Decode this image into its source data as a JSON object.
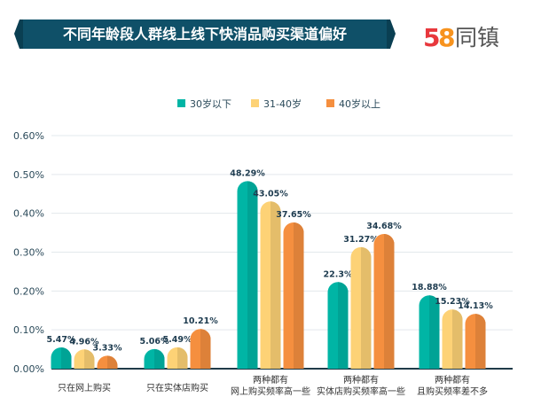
{
  "header": {
    "title": "不同年龄段人群线上线下快消品购买渠道偏好",
    "banner_color": "#0f5068",
    "logo": {
      "digits": "58",
      "text": "同镇"
    }
  },
  "chart_data": {
    "type": "bar",
    "title": "不同年龄段人群线上线下快消品购买渠道偏好",
    "categories": [
      [
        "只在网上购买"
      ],
      [
        "只在实体店购买"
      ],
      [
        "两种都有",
        "网上购买频率高一些"
      ],
      [
        "两种都有",
        "实体店购买频率高一些"
      ],
      [
        "两种都有",
        "且购买频率差不多"
      ]
    ],
    "series": [
      {
        "name": "30岁以下",
        "color": "#00b5a5",
        "values": [
          5.47,
          5.06,
          48.29,
          22.3,
          18.88
        ],
        "labels": [
          "5.47%",
          "5.06%",
          "48.29%",
          "22.3%",
          "18.88%"
        ]
      },
      {
        "name": "31-40岁",
        "color": "#fdd276",
        "values": [
          4.96,
          5.49,
          43.05,
          31.27,
          15.23
        ],
        "labels": [
          "4.96%",
          "5.49%",
          "43.05%",
          "31.27%",
          "15.23%"
        ]
      },
      {
        "name": "40岁以上",
        "color": "#f58f3f",
        "values": [
          3.33,
          10.21,
          37.65,
          34.68,
          14.13
        ],
        "labels": [
          "3.33%",
          "10.21%",
          "37.65%",
          "34.68%",
          "14.13%"
        ]
      }
    ],
    "y_ticks": [
      "0.00%",
      "0.10%",
      "0.20%",
      "0.30%",
      "0.40%",
      "0.50%",
      "0.60%"
    ],
    "ylim": [
      0,
      0.6
    ],
    "grid": true,
    "legend_position": "top-center",
    "xlabel": "",
    "ylabel": ""
  }
}
